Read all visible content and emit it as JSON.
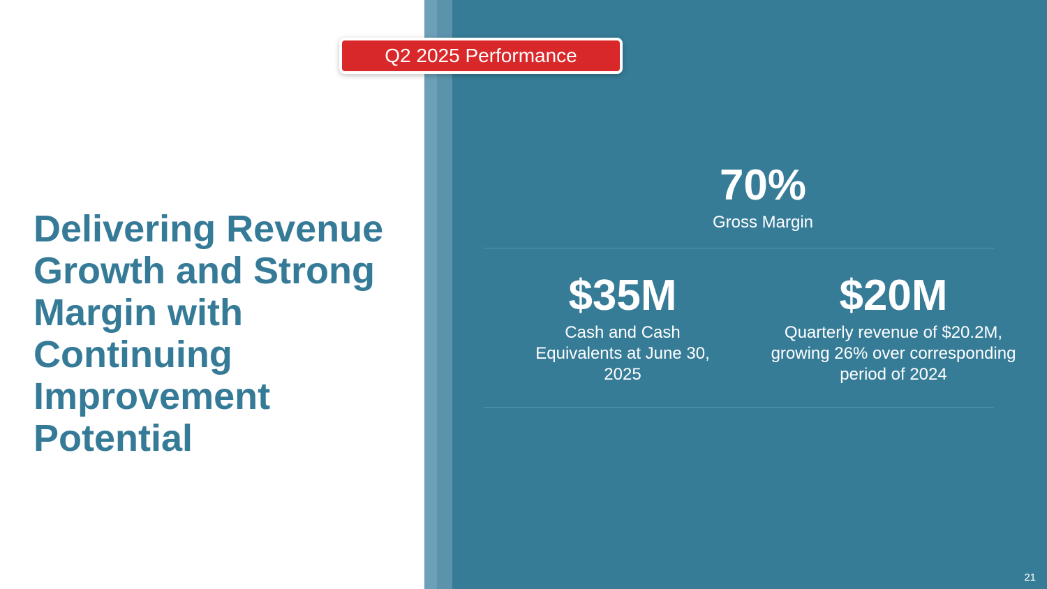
{
  "slide": {
    "headline": "Delivering Revenue Growth and Strong Margin with Continuing Improvement Potential",
    "badge": "Q2 2025 Performance",
    "stats": {
      "gross_margin": {
        "value": "70%",
        "label": "Gross Margin"
      },
      "cash": {
        "value": "$35M",
        "label": "Cash and Cash Equivalents at June 30, 2025"
      },
      "revenue": {
        "value": "$20M",
        "label": "Quarterly revenue of $20.2M, growing 26% over corresponding period of 2024"
      }
    },
    "page_number": "21"
  },
  "colors": {
    "headline": "#357a97",
    "panel": "#367c97",
    "badge": "#d9282a"
  }
}
